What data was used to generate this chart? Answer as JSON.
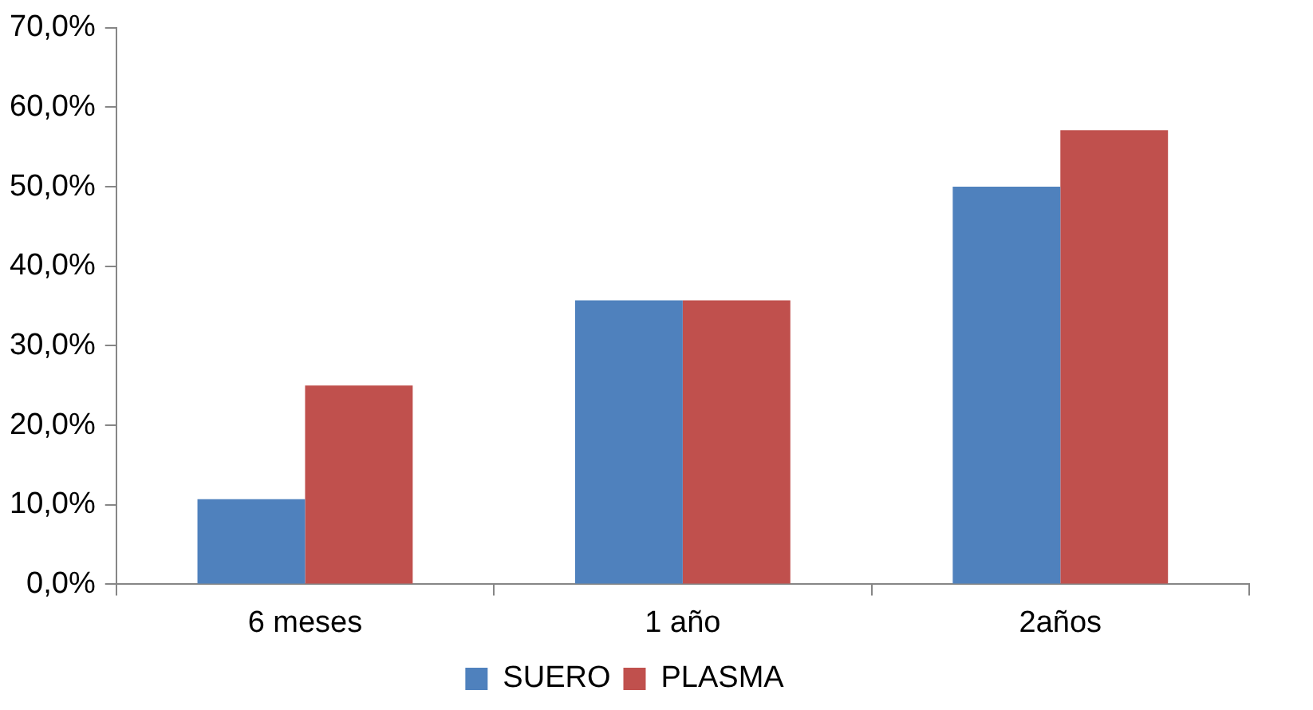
{
  "chart_data": {
    "type": "bar",
    "categories": [
      "6 meses",
      "1 año",
      "2años"
    ],
    "series": [
      {
        "name": "SUERO",
        "color": "#4f81bd",
        "values": [
          10.7,
          35.7,
          50.0
        ]
      },
      {
        "name": "PLASMA",
        "color": "#c0504d",
        "values": [
          25.0,
          35.7,
          57.1
        ]
      }
    ],
    "ylim": [
      0,
      70
    ],
    "yticks": [
      {
        "value": 0,
        "label": "0,0%"
      },
      {
        "value": 10,
        "label": "10,0%"
      },
      {
        "value": 20,
        "label": "20,0%"
      },
      {
        "value": 30,
        "label": "30,0%"
      },
      {
        "value": 40,
        "label": "40,0%"
      },
      {
        "value": 50,
        "label": "50,0%"
      },
      {
        "value": 60,
        "label": "60,0%"
      },
      {
        "value": 70,
        "label": "70,0%"
      }
    ],
    "grid": false,
    "legend": "bottom"
  }
}
